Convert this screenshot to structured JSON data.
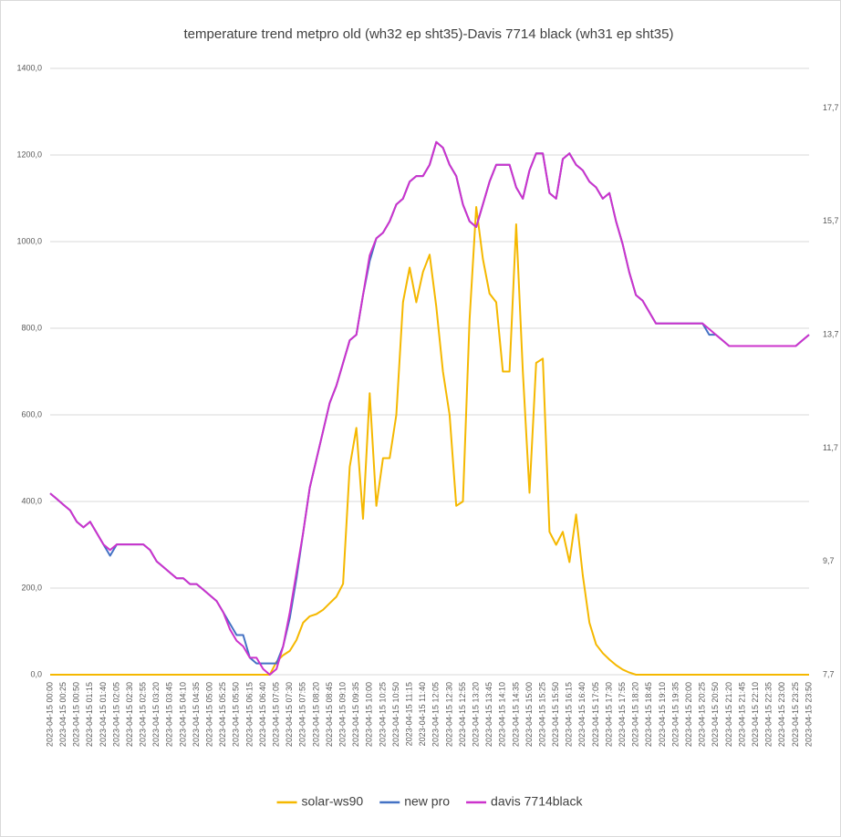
{
  "chart_data": {
    "type": "line",
    "title": "temperature trend metpro old (wh32 ep sht35)-Davis 7714 black (wh31 ep sht35)",
    "categories": [
      "2023-04-15 00:00",
      null,
      "2023-04-15 00:25",
      null,
      "2023-04-15 00:50",
      null,
      "2023-04-15 01:15",
      null,
      "2023-04-15 01:40",
      null,
      "2023-04-15 02:05",
      null,
      "2023-04-15 02:30",
      null,
      "2023-04-15 02:55",
      null,
      "2023-04-15 03:20",
      null,
      "2023-04-15 03:45",
      null,
      "2023-04-15 04:10",
      null,
      "2023-04-15 04:35",
      null,
      "2023-04-15 05:00",
      null,
      "2023-04-15 05:25",
      null,
      "2023-04-15 05:50",
      null,
      "2023-04-15 06:15",
      null,
      "2023-04-15 06:40",
      null,
      "2023-04-15 07:05",
      null,
      "2023-04-15 07:30",
      null,
      "2023-04-15 07:55",
      null,
      "2023-04-15 08:20",
      null,
      "2023-04-15 08:45",
      null,
      "2023-04-15 09:10",
      null,
      "2023-04-15 09:35",
      null,
      "2023-04-15 10:00",
      null,
      "2023-04-15 10:25",
      null,
      "2023-04-15 10:50",
      null,
      "2023-04-15 11:15",
      null,
      "2023-04-15 11:40",
      null,
      "2023-04-15 12:05",
      null,
      "2023-04-15 12:30",
      null,
      "2023-04-15 12:55",
      null,
      "2023-04-15 13:20",
      null,
      "2023-04-15 13:45",
      null,
      "2023-04-15 14:10",
      null,
      "2023-04-15 14:35",
      null,
      "2023-04-15 15:00",
      null,
      "2023-04-15 15:25",
      null,
      "2023-04-15 15:50",
      null,
      "2023-04-15 16:15",
      null,
      "2023-04-15 16:40",
      null,
      "2023-04-15 17:05",
      null,
      "2023-04-15 17:30",
      null,
      "2023-04-15 17:55",
      null,
      "2023-04-15 18:20",
      null,
      "2023-04-15 18:45",
      null,
      "2023-04-15 19:10",
      null,
      "2023-04-15 19:35",
      null,
      "2023-04-15 20:00",
      null,
      "2023-04-15 20:25",
      null,
      "2023-04-15 20:50",
      null,
      "2023-04-15 21:20",
      null,
      "2023-04-15 21:45",
      null,
      "2023-04-15 22:10",
      null,
      "2023-04-15 22:35",
      null,
      "2023-04-15 23:00",
      null,
      "2023-04-15 23:25",
      null,
      "2023-04-15 23:50"
    ],
    "series": [
      {
        "name": "solar-ws90",
        "color": "#f5b800",
        "values": [
          0,
          0,
          0,
          0,
          0,
          0,
          0,
          0,
          0,
          0,
          0,
          0,
          0,
          0,
          0,
          0,
          0,
          0,
          0,
          0,
          0,
          0,
          0,
          0,
          0,
          0,
          0,
          0,
          0,
          0,
          0,
          0,
          0,
          0,
          30,
          45,
          55,
          80,
          120,
          135,
          140,
          150,
          165,
          180,
          210,
          480,
          570,
          360,
          650,
          390,
          500,
          500,
          600,
          860,
          940,
          860,
          930,
          970,
          850,
          700,
          600,
          390,
          400,
          820,
          1080,
          960,
          880,
          860,
          700,
          700,
          1040,
          700,
          420,
          720,
          730,
          330,
          300,
          330,
          260,
          370,
          230,
          120,
          70,
          50,
          35,
          22,
          12,
          5,
          0,
          0,
          0,
          0,
          0,
          0,
          0,
          0,
          0,
          0,
          0,
          0,
          0,
          0,
          0,
          0,
          0,
          0,
          0,
          0,
          0,
          0,
          0,
          0,
          0,
          0,
          0
        ]
      },
      {
        "name": "new pro",
        "color": "#4472c4",
        "axis": "y2",
        "values": [
          10.9,
          10.8,
          10.7,
          10.6,
          10.4,
          10.3,
          10.4,
          10.2,
          10.0,
          9.8,
          10.0,
          10.0,
          10.0,
          10.0,
          10.0,
          9.9,
          9.7,
          9.6,
          9.5,
          9.4,
          9.4,
          9.3,
          9.3,
          9.2,
          9.1,
          9.0,
          8.8,
          8.6,
          8.4,
          8.4,
          8.0,
          7.9,
          7.9,
          7.9,
          7.9,
          8.2,
          8.7,
          9.4,
          10.2,
          11.0,
          11.5,
          12.0,
          12.5,
          12.8,
          13.2,
          13.6,
          13.7,
          14.4,
          15.0,
          15.4,
          15.5,
          15.7,
          16.0,
          16.1,
          16.4,
          16.5,
          16.5,
          16.7,
          17.1,
          17.0,
          16.7,
          16.5,
          16.0,
          15.7,
          15.6,
          16.0,
          16.4,
          16.7,
          16.7,
          16.7,
          16.3,
          16.1,
          16.6,
          16.9,
          16.9,
          16.2,
          16.1,
          16.8,
          16.9,
          16.7,
          16.6,
          16.4,
          16.3,
          16.1,
          16.2,
          15.7,
          15.3,
          14.8,
          14.4,
          14.3,
          14.1,
          13.9,
          13.9,
          13.9,
          13.9,
          13.9,
          13.9,
          13.9,
          13.9,
          13.7,
          13.7,
          13.6,
          13.5,
          13.5,
          13.5,
          13.5,
          13.5,
          13.5,
          13.5,
          13.5,
          13.5,
          13.5,
          13.5,
          13.6,
          13.7
        ]
      },
      {
        "name": "davis 7714black",
        "color": "#cc33cc",
        "axis": "y2",
        "values": [
          10.9,
          10.8,
          10.7,
          10.6,
          10.4,
          10.3,
          10.4,
          10.2,
          10.0,
          9.9,
          10.0,
          10.0,
          10.0,
          10.0,
          10.0,
          9.9,
          9.7,
          9.6,
          9.5,
          9.4,
          9.4,
          9.3,
          9.3,
          9.2,
          9.1,
          9.0,
          8.8,
          8.5,
          8.3,
          8.2,
          8.0,
          8.0,
          7.8,
          7.7,
          7.8,
          8.2,
          8.8,
          9.5,
          10.2,
          11.0,
          11.5,
          12.0,
          12.5,
          12.8,
          13.2,
          13.6,
          13.7,
          14.4,
          15.1,
          15.4,
          15.5,
          15.7,
          16.0,
          16.1,
          16.4,
          16.5,
          16.5,
          16.7,
          17.1,
          17.0,
          16.7,
          16.5,
          16.0,
          15.7,
          15.6,
          16.0,
          16.4,
          16.7,
          16.7,
          16.7,
          16.3,
          16.1,
          16.6,
          16.9,
          16.9,
          16.2,
          16.1,
          16.8,
          16.9,
          16.7,
          16.6,
          16.4,
          16.3,
          16.1,
          16.2,
          15.7,
          15.3,
          14.8,
          14.4,
          14.3,
          14.1,
          13.9,
          13.9,
          13.9,
          13.9,
          13.9,
          13.9,
          13.9,
          13.9,
          13.8,
          13.7,
          13.6,
          13.5,
          13.5,
          13.5,
          13.5,
          13.5,
          13.5,
          13.5,
          13.5,
          13.5,
          13.5,
          13.5,
          13.6,
          13.7
        ]
      }
    ],
    "ylim": [
      0,
      1400
    ],
    "yticks": [
      {
        "value": 0,
        "label": "0,0"
      },
      {
        "value": 200,
        "label": "200,0"
      },
      {
        "value": 400,
        "label": "400,0"
      },
      {
        "value": 600,
        "label": "600,0"
      },
      {
        "value": 800,
        "label": "800,0"
      },
      {
        "value": 1000,
        "label": "1000,0"
      },
      {
        "value": 1200,
        "label": "1200,0"
      },
      {
        "value": 1400,
        "label": "1400,0"
      }
    ],
    "y2lim": [
      7.7,
      18.4
    ],
    "y2ticks": [
      {
        "value": 7.7,
        "label": "7,7"
      },
      {
        "value": 9.7,
        "label": "9,7"
      },
      {
        "value": 11.7,
        "label": "11,7"
      },
      {
        "value": 13.7,
        "label": "13,7"
      },
      {
        "value": 15.7,
        "label": "15,7"
      },
      {
        "value": 17.7,
        "label": "17,7"
      }
    ],
    "grid": true,
    "legend": "bottom"
  }
}
